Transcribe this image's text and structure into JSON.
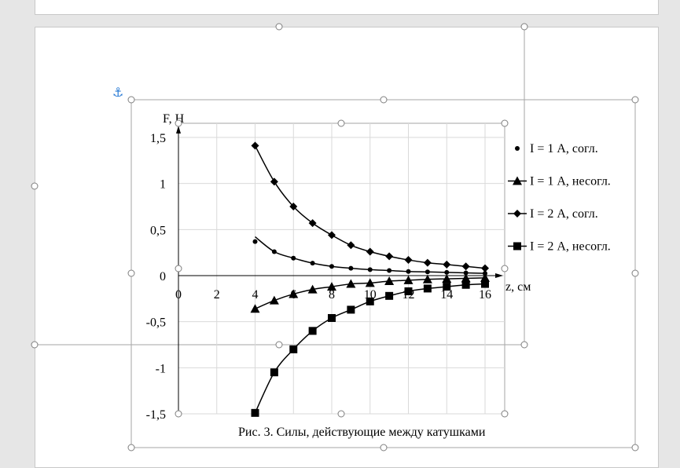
{
  "anchor_icon": "⚓",
  "caption": "Рис. 3. Силы, действующие между катушками",
  "chart_data": {
    "type": "line",
    "title": "",
    "xlabel": "z, см",
    "ylabel": "F, Н",
    "xlim": [
      0,
      16
    ],
    "ylim": [
      -1.5,
      1.5
    ],
    "x_ticks": [
      "0",
      "2",
      "4",
      "6",
      "8",
      "10",
      "12",
      "14",
      "16"
    ],
    "y_ticks": [
      "-1,5",
      "-1",
      "-0,5",
      "0",
      "0,5",
      "1",
      "1,5"
    ],
    "grid": true,
    "legend_position": "right",
    "x": [
      4,
      5,
      6,
      7,
      8,
      9,
      10,
      11,
      12,
      13,
      14,
      15,
      16
    ],
    "series": [
      {
        "name": "I = 1 А, согл.",
        "marker": "circle",
        "values": [
          0.37,
          0.26,
          0.19,
          0.135,
          0.1,
          0.08,
          0.065,
          0.055,
          0.045,
          0.04,
          0.035,
          0.03,
          0.025
        ],
        "color": "#000000"
      },
      {
        "name": "I = 1 А, несогл.",
        "marker": "triangle",
        "values": [
          -0.36,
          -0.27,
          -0.2,
          -0.15,
          -0.12,
          -0.09,
          -0.08,
          -0.06,
          -0.05,
          -0.04,
          -0.035,
          -0.03,
          -0.025
        ],
        "color": "#000000"
      },
      {
        "name": "I = 2 А, согл.",
        "marker": "diamond",
        "values": [
          1.41,
          1.02,
          0.75,
          0.57,
          0.44,
          0.33,
          0.26,
          0.21,
          0.17,
          0.14,
          0.12,
          0.1,
          0.08
        ],
        "color": "#000000"
      },
      {
        "name": "I = 2 А, несогл.",
        "marker": "square",
        "values": [
          -1.49,
          -1.05,
          -0.8,
          -0.6,
          -0.46,
          -0.37,
          -0.28,
          -0.22,
          -0.17,
          -0.14,
          -0.12,
          -0.1,
          -0.09
        ],
        "color": "#000000"
      }
    ]
  }
}
